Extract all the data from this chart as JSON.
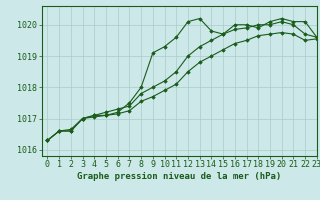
{
  "title": "Graphe pression niveau de la mer (hPa)",
  "bg_color": "#cce8e8",
  "grid_color": "#aacccc",
  "line_color": "#1a5c1a",
  "xlim": [
    -0.5,
    23
  ],
  "ylim": [
    1015.8,
    1020.6
  ],
  "yticks": [
    1016,
    1017,
    1018,
    1019,
    1020
  ],
  "xticks": [
    0,
    1,
    2,
    3,
    4,
    5,
    6,
    7,
    8,
    9,
    10,
    11,
    12,
    13,
    14,
    15,
    16,
    17,
    18,
    19,
    20,
    21,
    22,
    23
  ],
  "series1": [
    1016.3,
    1016.6,
    1016.6,
    1017.0,
    1017.1,
    1017.1,
    1017.2,
    1017.5,
    1018.0,
    1019.1,
    1019.3,
    1019.6,
    1020.1,
    1020.2,
    1019.8,
    1019.7,
    1020.0,
    1020.0,
    1019.9,
    1020.1,
    1020.2,
    1020.1,
    1020.1,
    1019.6
  ],
  "series2": [
    1016.3,
    1016.6,
    1016.6,
    1017.0,
    1017.1,
    1017.2,
    1017.3,
    1017.4,
    1017.8,
    1018.0,
    1018.2,
    1018.5,
    1019.0,
    1019.3,
    1019.5,
    1019.7,
    1019.85,
    1019.9,
    1020.0,
    1020.0,
    1020.1,
    1020.0,
    1019.7,
    1019.6
  ],
  "series3": [
    1016.3,
    1016.6,
    1016.65,
    1017.0,
    1017.05,
    1017.1,
    1017.15,
    1017.25,
    1017.55,
    1017.7,
    1017.9,
    1018.1,
    1018.5,
    1018.8,
    1019.0,
    1019.2,
    1019.4,
    1019.5,
    1019.65,
    1019.7,
    1019.75,
    1019.7,
    1019.5,
    1019.55
  ],
  "tick_fontsize": 6,
  "xlabel_fontsize": 6.5,
  "figsize": [
    3.2,
    2.0
  ],
  "dpi": 100
}
